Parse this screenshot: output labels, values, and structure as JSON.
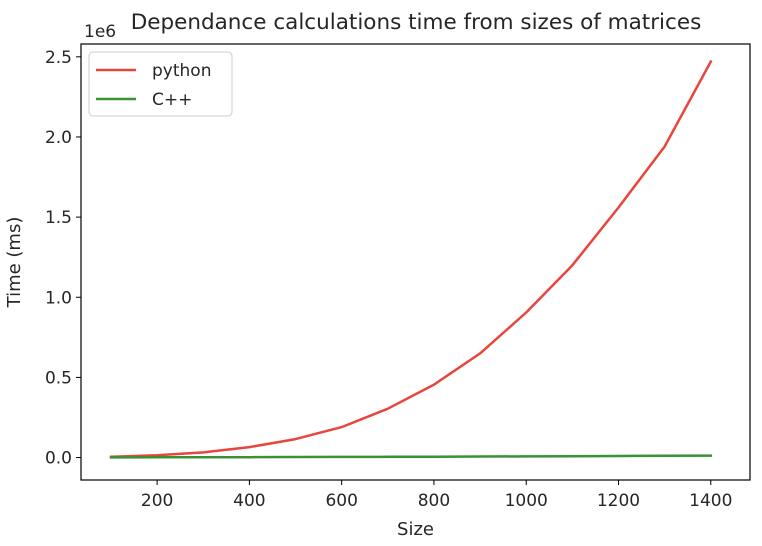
{
  "chart_data": {
    "type": "line",
    "title": "Dependance calculations time from sizes of matrices",
    "xlabel": "Size",
    "ylabel": "Time (ms)",
    "y_offset_label": "1e6",
    "y_multiplier": 1000000,
    "xlim": [
      35,
      1485
    ],
    "ylim": [
      -140000,
      2580000
    ],
    "x_ticks": [
      200,
      400,
      600,
      800,
      1000,
      1200,
      1400
    ],
    "y_ticks": [
      0,
      0.5,
      1.0,
      1.5,
      2.0,
      2.5
    ],
    "y_tick_labels": [
      "0.0",
      "0.5",
      "1.0",
      "1.5",
      "2.0",
      "2.5"
    ],
    "grid": false,
    "legend_position": "top-left",
    "x": [
      100,
      200,
      300,
      400,
      500,
      600,
      700,
      800,
      900,
      1000,
      1100,
      1200,
      1300,
      1400
    ],
    "series": [
      {
        "name": "python",
        "color": "#e8453c",
        "values": [
          5000,
          15000,
          32000,
          65000,
          115000,
          190000,
          305000,
          455000,
          650000,
          905000,
          1200000,
          1560000,
          1940000,
          2470000
        ]
      },
      {
        "name": "C++",
        "color": "#3a9234",
        "values": [
          1000,
          1500,
          2000,
          2500,
          3200,
          3800,
          4500,
          5300,
          6300,
          7300,
          8400,
          9600,
          11000,
          12500
        ]
      }
    ]
  }
}
